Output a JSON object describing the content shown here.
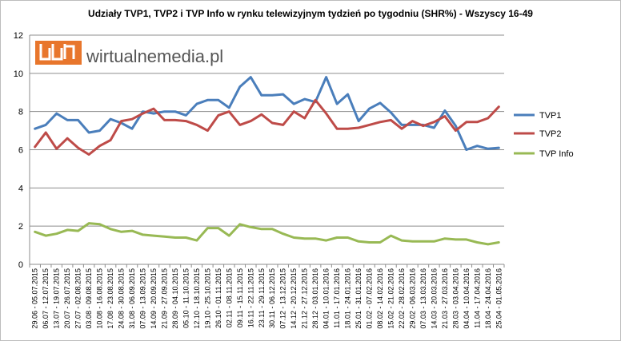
{
  "chart_data": {
    "type": "line",
    "title": "Udziały TVP1, TVP2 i TVP Info  w rynku telewizyjnym tydzień po tygodniu (SHR%) - Wszyscy 16-49",
    "xlabel": "",
    "ylabel": "",
    "ylim": [
      0,
      12
    ],
    "yticks": [
      0,
      2,
      4,
      6,
      8,
      10,
      12
    ],
    "grid": true,
    "legend_position": "right",
    "categories": [
      "29.06 - 05.07.2015",
      "06.07 - 12.07.2015",
      "13.07 - 19.07.2015",
      "20.07 - 26.07.2015",
      "27.07 - 02.08.2015",
      "03.08 - 09.08.2015",
      "10.08 - 16.08.2015",
      "17.08 - 23.08.2015",
      "24.08 - 30.08.2015",
      "31.08 - 06.09.2015",
      "07.09 - 13.09.2015",
      "14.09 - 20.09.2015",
      "21.09 - 27.09.2015",
      "28.09 - 04.10.2015",
      "05.10 - 11.10.2015",
      "12.10 - 18.10.2015",
      "19.10 - 25.10.2015",
      "26.10 - 01.11.2015",
      "02.11 - 08.11.2015",
      "09.11 - 15.11.2015",
      "16.11 - 22.11.2015",
      "23.11 - 29.11.2015",
      "30.11 - 06.12.2015",
      "07.12 - 13.12.2015",
      "14.12 - 20.12.2015",
      "21.12 - 27.12.2015",
      "28.12 - 03.01.2016",
      "04.01 - 10.01.2016",
      "11.01 - 17.01.2016",
      "18.01 - 24.01.2016",
      "25.01 - 31.01.2016",
      "01.02 - 07.02.2016",
      "08.02 - 14.02.2016",
      "15.02 - 21.02.2016",
      "22.02 - 28.02.2016",
      "29.02 - 06.03.2016",
      "07.03 - 13.03.2016",
      "14.03 - 20.03.2016",
      "21.03 - 27.03.2016",
      "28.03 - 03.04.2016",
      "04.04 - 10.04.2016",
      "11.04 - 17.04.2016",
      "18.04 - 24.04.2016",
      "25.04 - 01.05.2016"
    ],
    "series": [
      {
        "name": "TVP1",
        "color": "#4a7ebb",
        "values": [
          7.1,
          7.3,
          7.9,
          7.55,
          7.55,
          6.9,
          7.0,
          7.6,
          7.4,
          7.1,
          8.0,
          7.9,
          8.0,
          8.0,
          7.8,
          8.4,
          8.6,
          8.6,
          8.2,
          9.3,
          9.8,
          8.85,
          8.85,
          8.9,
          8.4,
          8.65,
          8.5,
          9.8,
          8.4,
          8.9,
          7.5,
          8.15,
          8.45,
          7.95,
          7.3,
          7.3,
          7.3,
          7.15,
          8.05,
          7.25,
          6.0,
          6.2,
          6.05,
          6.1
        ]
      },
      {
        "name": "TVP2",
        "color": "#be4b48",
        "values": [
          6.15,
          6.9,
          6.05,
          6.6,
          6.1,
          5.75,
          6.2,
          6.5,
          7.5,
          7.6,
          7.9,
          8.15,
          7.55,
          7.55,
          7.5,
          7.3,
          7.0,
          7.8,
          8.0,
          7.3,
          7.5,
          7.85,
          7.4,
          7.3,
          8.0,
          7.65,
          8.6,
          7.9,
          7.1,
          7.1,
          7.15,
          7.3,
          7.45,
          7.55,
          7.1,
          7.5,
          7.25,
          7.45,
          7.75,
          7.0,
          7.45,
          7.45,
          7.65,
          8.25
        ]
      },
      {
        "name": "TVP Info",
        "color": "#98b954",
        "values": [
          1.7,
          1.5,
          1.6,
          1.8,
          1.75,
          2.15,
          2.1,
          1.85,
          1.7,
          1.75,
          1.55,
          1.5,
          1.45,
          1.4,
          1.4,
          1.25,
          1.9,
          1.9,
          1.5,
          2.1,
          1.95,
          1.85,
          1.85,
          1.6,
          1.4,
          1.35,
          1.35,
          1.25,
          1.4,
          1.4,
          1.2,
          1.15,
          1.15,
          1.5,
          1.25,
          1.2,
          1.2,
          1.2,
          1.35,
          1.3,
          1.3,
          1.15,
          1.05,
          1.15
        ]
      }
    ]
  },
  "logo": {
    "text": "wirtualnemedia.pl",
    "accent_color": "#e8762c"
  }
}
